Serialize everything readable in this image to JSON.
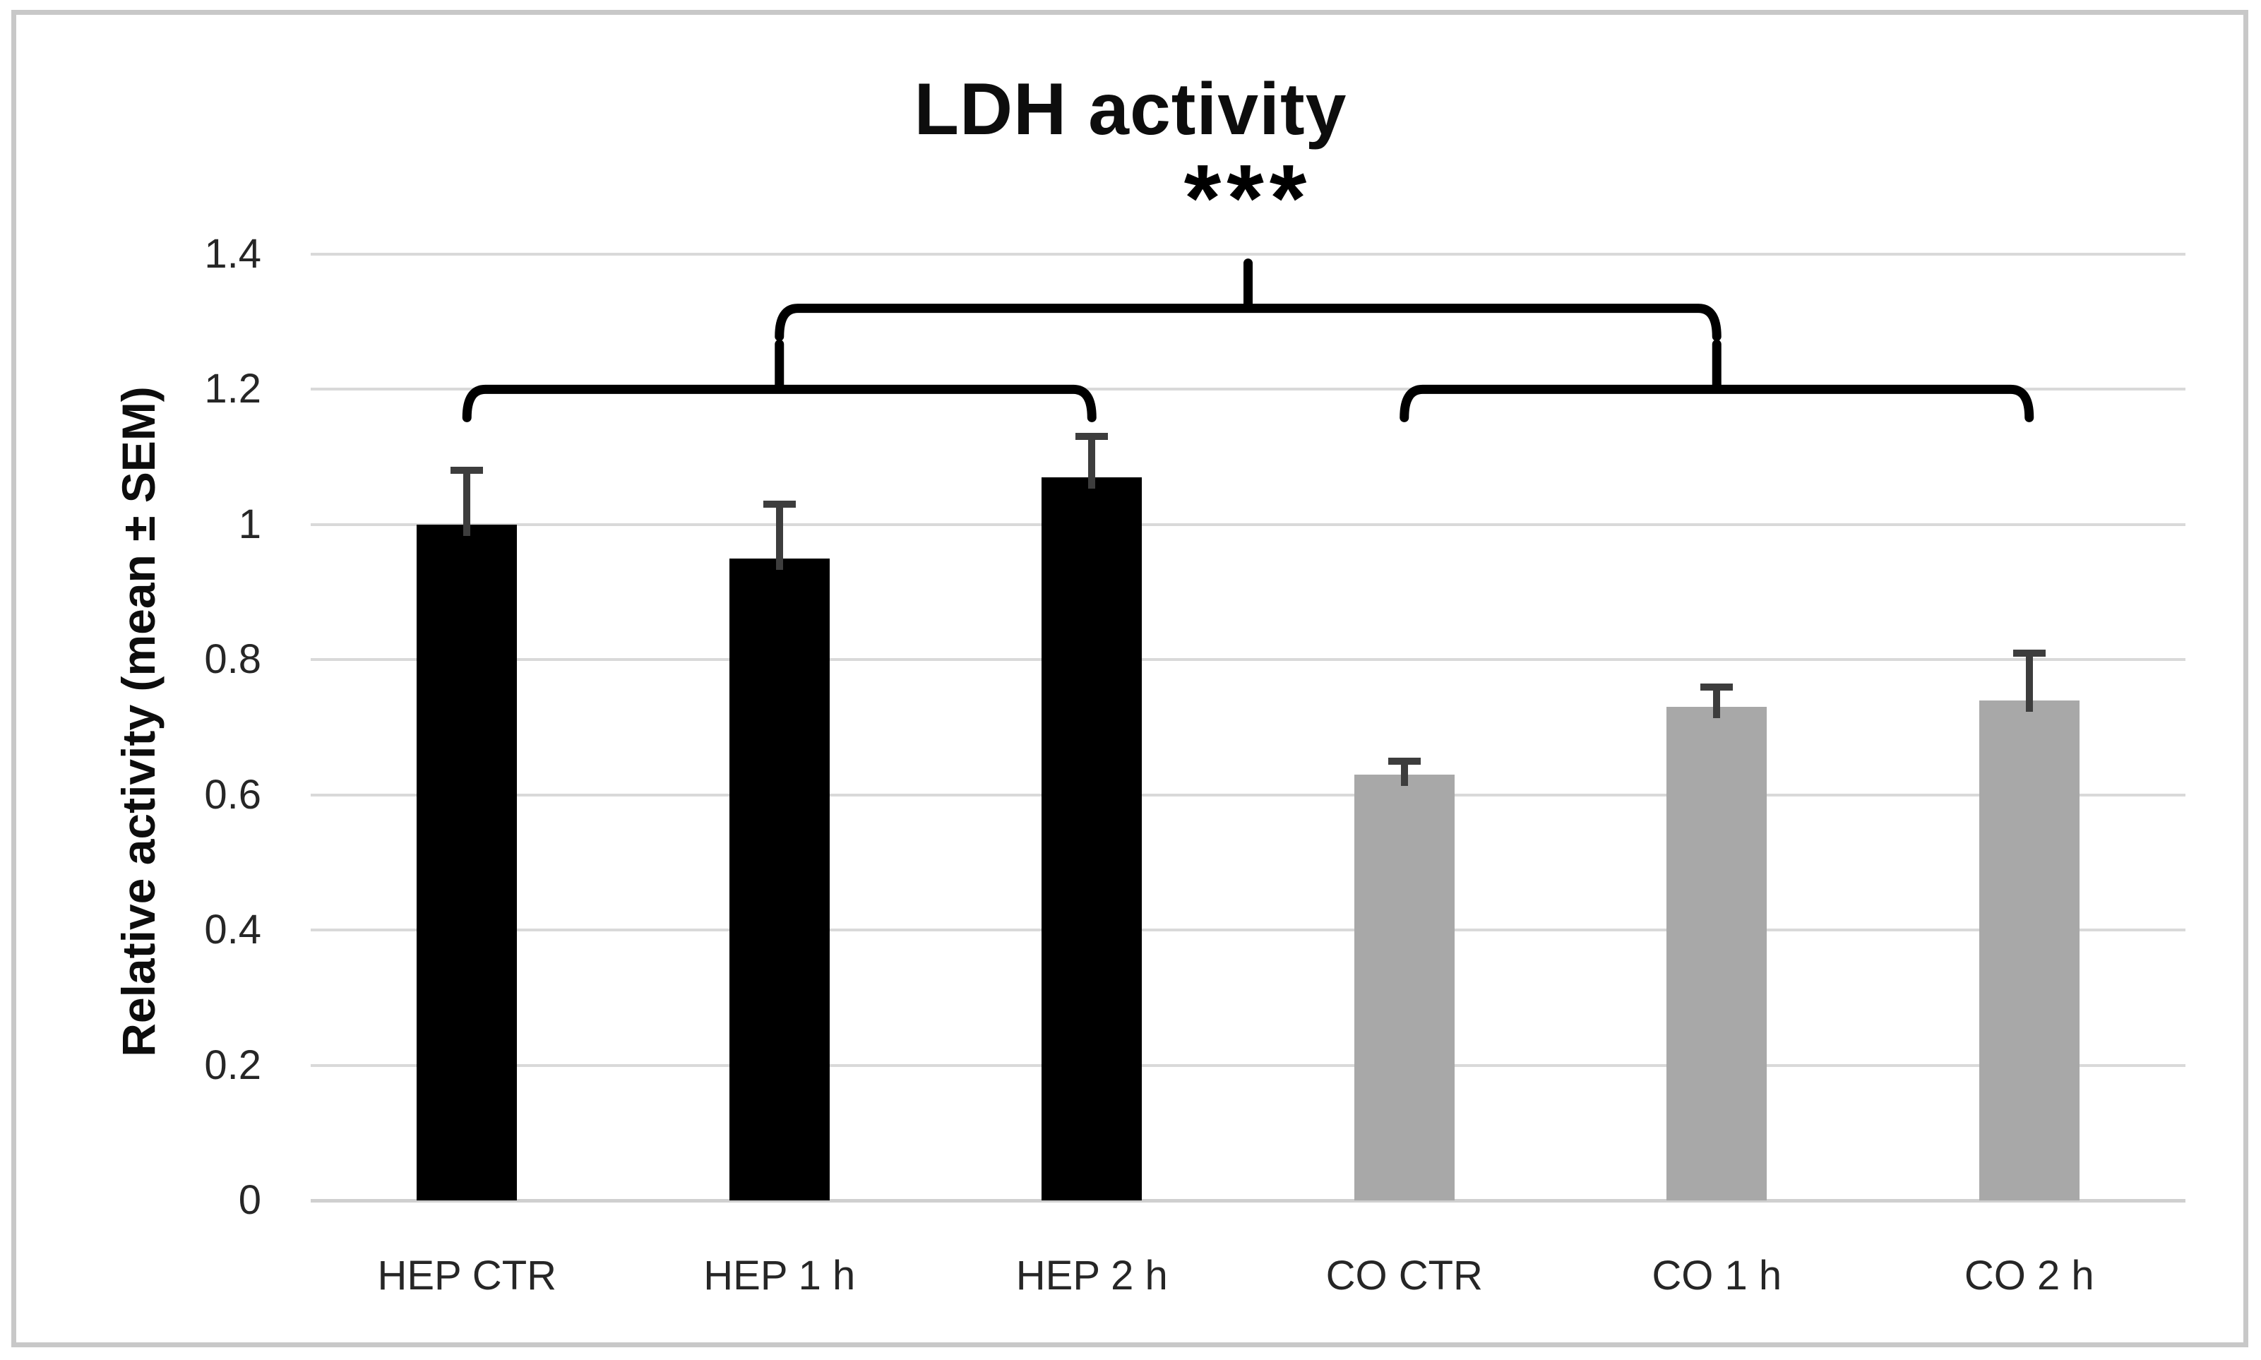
{
  "figure": {
    "background": "#ffffff",
    "border_color": "#c8c8c8"
  },
  "chart_data": {
    "type": "bar",
    "title": "LDH activity",
    "xlabel": "",
    "ylabel": "Relative activity (mean ± SEM)",
    "categories": [
      "HEP CTR",
      "HEP 1 h",
      "HEP 2 h",
      "CO CTR",
      "CO 1 h",
      "CO 2 h"
    ],
    "values": [
      1.0,
      0.95,
      1.07,
      0.63,
      0.73,
      0.74
    ],
    "errors_sem": [
      0.08,
      0.08,
      0.06,
      0.02,
      0.03,
      0.07
    ],
    "bar_colors": [
      "#000000",
      "#000000",
      "#000000",
      "#a8a8a8",
      "#a8a8a8",
      "#a8a8a8"
    ],
    "error_bar_color": "#3d3d3d",
    "ylim": [
      0,
      1.4
    ],
    "ytick_step": 0.2,
    "ytick_labels": [
      "0",
      "0.2",
      "0.4",
      "0.6",
      "0.8",
      "1",
      "1.2",
      "1.4"
    ],
    "grid": true,
    "gridline_color": "#d9d9d9",
    "axis_line_color": "#cfcfcf",
    "legend": "none",
    "significance": {
      "label": "***",
      "bracket_color": "#000000",
      "group_brackets": [
        {
          "from_index": 0,
          "to_index": 2,
          "level_value": 1.2
        },
        {
          "from_index": 3,
          "to_index": 5,
          "level_value": 1.2
        }
      ],
      "main_bracket": {
        "connects_group_brackets": [
          0,
          1
        ],
        "level_value": 1.32
      }
    }
  }
}
